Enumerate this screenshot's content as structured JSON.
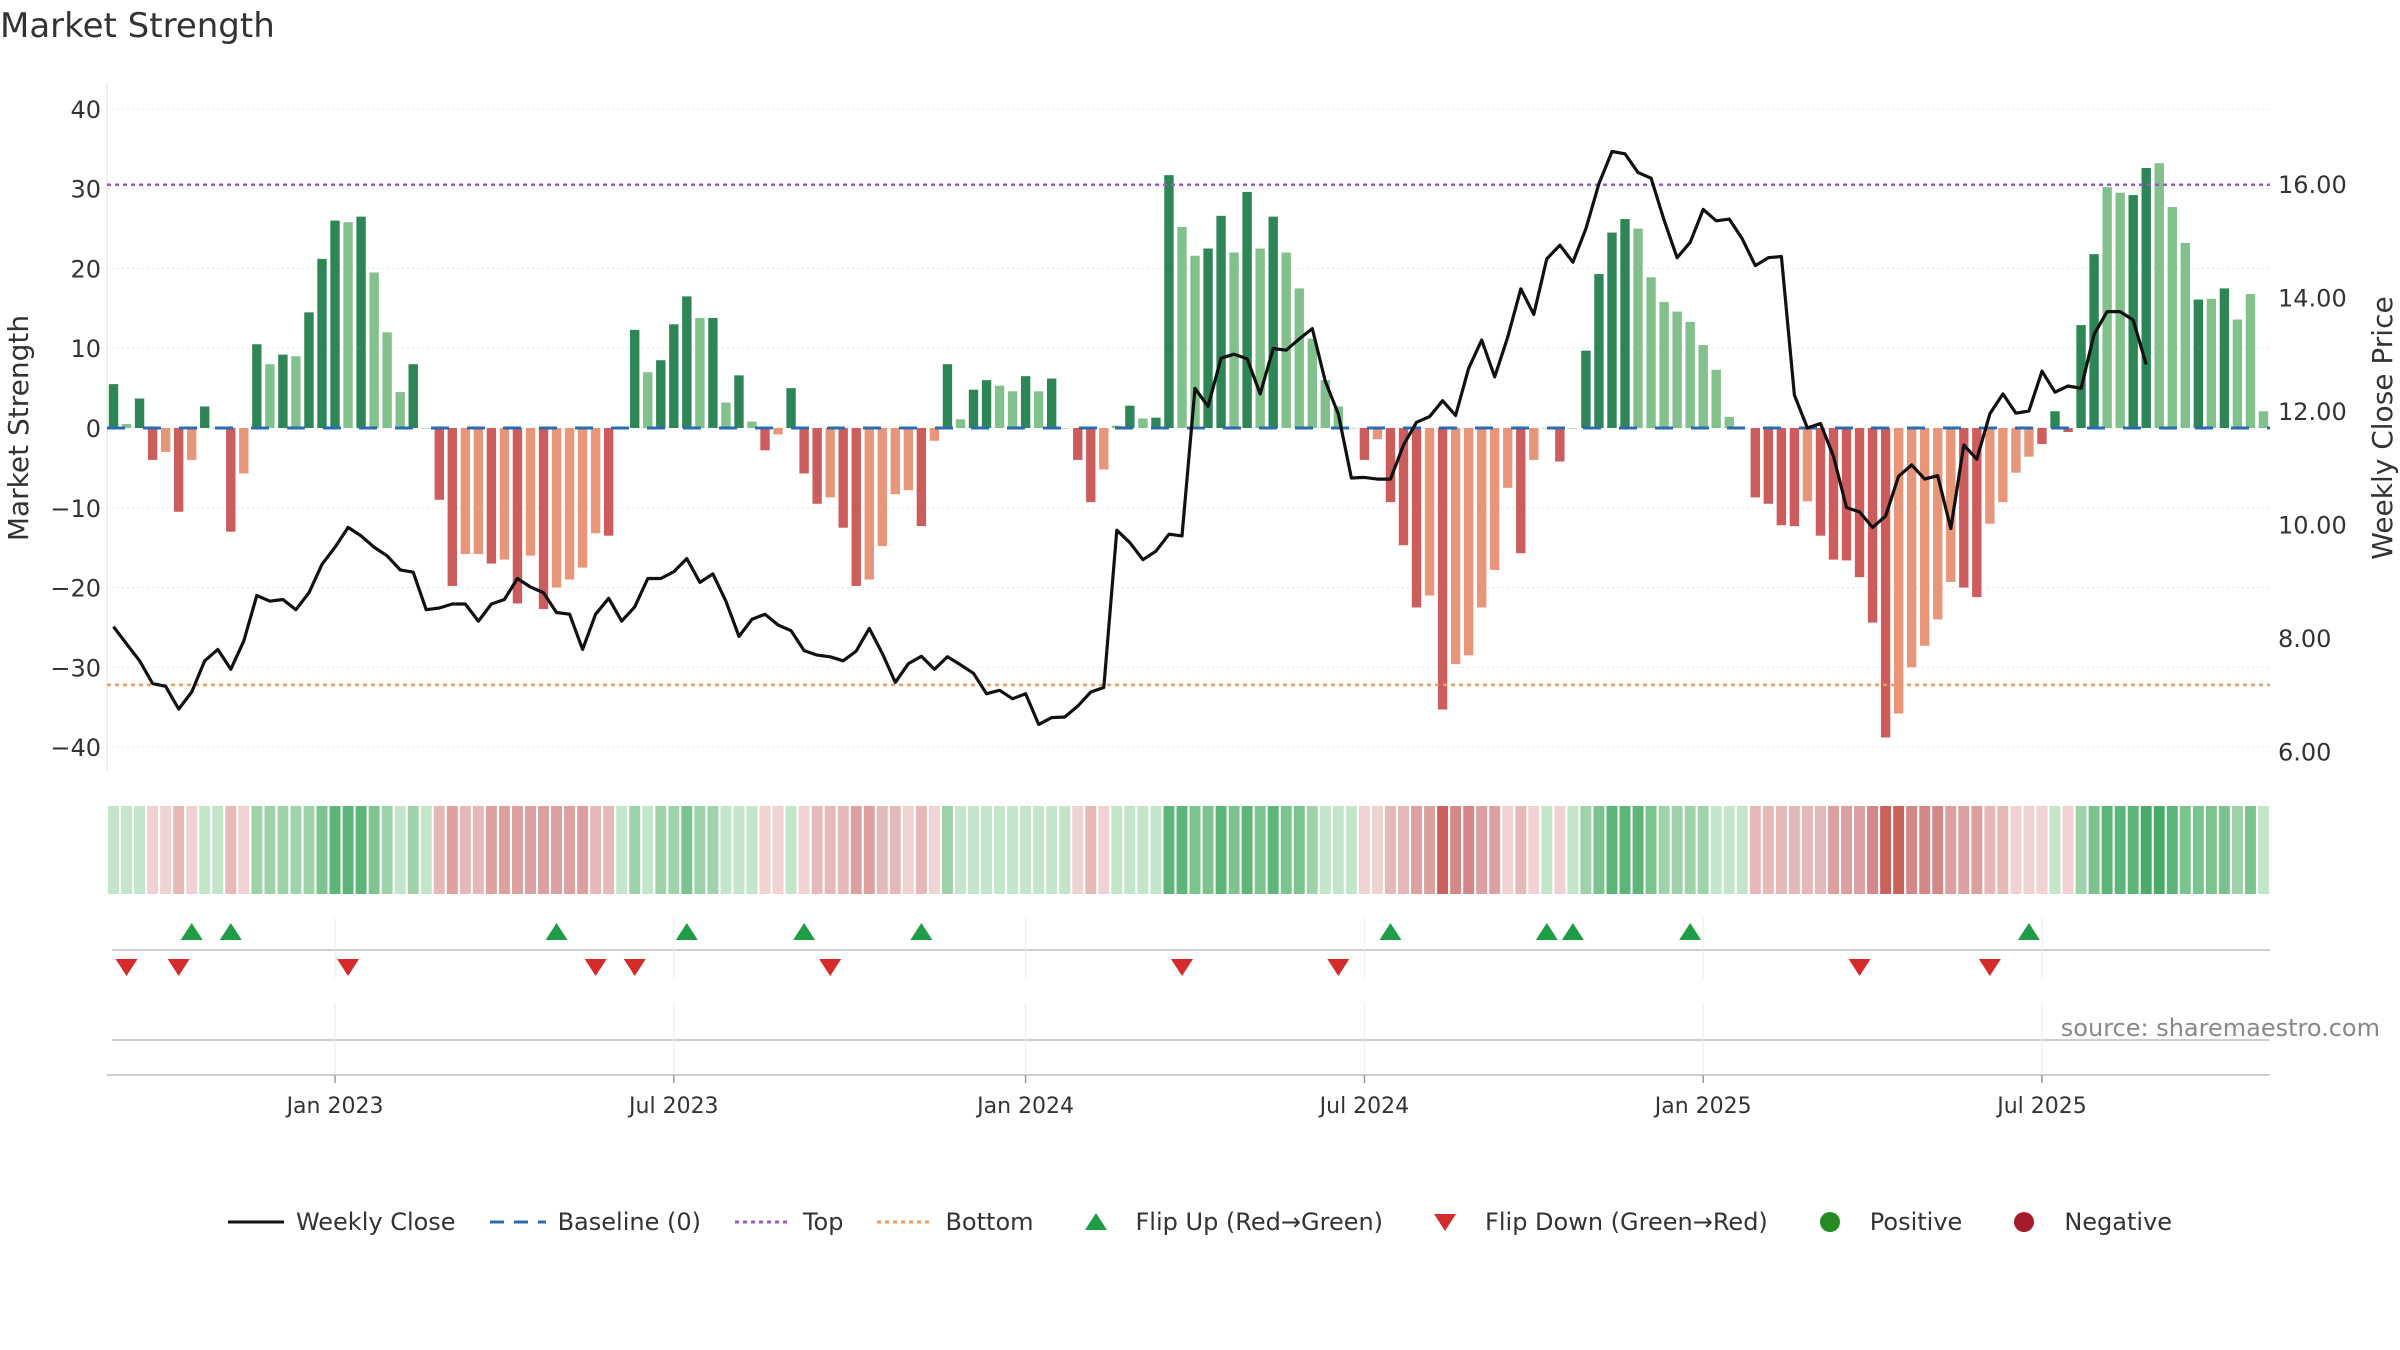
{
  "chart_data": {
    "type": "bar",
    "title": "Market Strength",
    "ylabel": "Market Strength",
    "y2label": "Weekly Close Price",
    "ylim": [
      -42,
      42
    ],
    "y2lim": [
      5.8,
      17.6
    ],
    "yticks": [
      "40",
      "30",
      "20",
      "10",
      "0",
      "−10",
      "−20",
      "−30",
      "−40"
    ],
    "y2ticks": [
      "16.00",
      "14.00",
      "12.00",
      "10.00",
      "8.00",
      "6.00"
    ],
    "top_line": 30.5,
    "bottom_line": -32.2,
    "x_start": "2022-09-05",
    "x_end": "2025-09-01",
    "date_ticks": [
      {
        "label": "Jan 2023",
        "week": 17
      },
      {
        "label": "Jul 2023",
        "week": 43
      },
      {
        "label": "Jan 2024",
        "week": 70
      },
      {
        "label": "Jul 2024",
        "week": 96
      },
      {
        "label": "Jan 2025",
        "week": 122
      },
      {
        "label": "Jul 2025",
        "week": 148
      }
    ],
    "series": [
      {
        "name": "Market Strength",
        "values": [
          5.5,
          0.5,
          3.7,
          -4,
          -3,
          -10.5,
          -4,
          2.7,
          0,
          -13,
          -5.7,
          10.5,
          8,
          9.2,
          9,
          14.5,
          21.2,
          26,
          25.8,
          26.5,
          19.5,
          12,
          4.5,
          8,
          0,
          -9,
          -19.8,
          -15.8,
          -15.8,
          -17,
          -16.5,
          -22,
          -16,
          -22.7,
          -20,
          -19,
          -17.5,
          -13.2,
          -13.5,
          0,
          12.3,
          7,
          8.5,
          13,
          16.5,
          13.8,
          13.8,
          3.2,
          6.6,
          0.8,
          -2.8,
          -0.8,
          5,
          -5.7,
          -9.5,
          -8.7,
          -12.5,
          -19.8,
          -19,
          -14.8,
          -8.3,
          -7.8,
          -12.3,
          -1.6,
          8,
          1.1,
          4.8,
          6,
          5.3,
          4.6,
          6.5,
          4.6,
          6.2,
          0,
          -4,
          -9.3,
          -5.2,
          0.3,
          2.8,
          1.2,
          1.3,
          31.7,
          25.2,
          21.6,
          22.5,
          26.6,
          22,
          29.6,
          22.5,
          26.5,
          22,
          17.5,
          11.2,
          6,
          2.7,
          0,
          -4,
          -1.4,
          -9.3,
          -14.7,
          -22.5,
          -21,
          -35.3,
          -29.6,
          -28.5,
          -22.5,
          -17.8,
          -7.5,
          -15.7,
          -4,
          0,
          -4.2,
          0,
          9.7,
          19.3,
          24.5,
          26.2,
          25,
          18.9,
          15.8,
          14.6,
          13.3,
          10.4,
          7.3,
          1.4,
          0,
          -8.7,
          -9.5,
          -12.2,
          -12.3,
          -9.2,
          -13.5,
          -16.5,
          -16.6,
          -18.7,
          -24.4,
          -38.8,
          -35.8,
          -30,
          -27.3,
          -24,
          -19.3,
          -20,
          -21.2,
          -12,
          -9.3,
          -5.6,
          -3.6,
          -2,
          2.1,
          -0.5,
          12.9,
          21.8,
          30.2,
          29.5,
          29.2,
          32.6,
          33.2,
          27.7,
          23.2,
          16.1,
          16.2,
          17.5,
          13.6,
          16.8,
          2.1
        ]
      },
      {
        "name": "Weekly Close",
        "values": [
          8.2,
          7.9,
          7.6,
          7.2,
          7.15,
          6.75,
          7.05,
          7.6,
          7.8,
          7.45,
          7.95,
          8.75,
          8.65,
          8.68,
          8.5,
          8.8,
          9.3,
          9.6,
          9.95,
          9.8,
          9.6,
          9.45,
          9.2,
          9.16,
          8.5,
          8.53,
          8.6,
          8.6,
          8.3,
          8.6,
          8.68,
          9.05,
          8.9,
          8.8,
          8.45,
          8.42,
          7.8,
          8.42,
          8.7,
          8.3,
          8.55,
          9.05,
          9.05,
          9.17,
          9.4,
          8.98,
          9.13,
          8.65,
          8.03,
          8.33,
          8.42,
          8.23,
          8.13,
          7.78,
          7.7,
          7.67,
          7.6,
          7.77,
          8.17,
          7.73,
          7.22,
          7.55,
          7.68,
          7.45,
          7.67,
          7.53,
          7.38,
          7.02,
          7.08,
          6.93,
          7.02,
          6.48,
          6.6,
          6.61,
          6.8,
          7.05,
          7.13,
          9.9,
          9.68,
          9.38,
          9.53,
          9.83,
          9.8,
          12.4,
          12.08,
          12.93,
          13,
          12.92,
          12.3,
          13.1,
          13.07,
          13.27,
          13.45,
          12.52,
          11.95,
          10.82,
          10.83,
          10.8,
          10.8,
          11.4,
          11.8,
          11.9,
          12.18,
          11.92,
          12.75,
          13.25,
          12.6,
          13.3,
          14.15,
          13.7,
          14.68,
          14.92,
          14.62,
          15.21,
          16,
          16.57,
          16.53,
          16.2,
          16.1,
          15.36,
          14.7,
          14.97,
          15.55,
          15.35,
          15.38,
          15.03,
          14.56,
          14.7,
          14.72,
          12.28,
          11.7,
          11.78,
          11.2,
          10.3,
          10.22,
          9.95,
          10.15,
          10.85,
          11.05,
          10.8,
          10.86,
          9.93,
          11.4,
          11.15,
          11.95,
          12.3,
          11.96,
          12,
          12.7,
          12.33,
          12.44,
          12.4,
          13.35,
          13.75,
          13.75,
          13.6,
          12.82
        ]
      }
    ],
    "bar_palette": {
      "pos_dark": "#2e8656",
      "pos_light": "#82c08c",
      "neg_dark": "#cd5c5c",
      "neg_light": "#e8967a"
    },
    "heat_palette": {
      "pos": [
        "#c3e5ca",
        "#9ed3aa",
        "#7bc48e",
        "#5db57a",
        "#4aaa69"
      ],
      "neg": [
        "#f0d2d2",
        "#e6b8b8",
        "#dca0a0",
        "#d38787",
        "#c8625a"
      ]
    },
    "bar_dark": [
      1,
      0,
      1,
      1,
      0,
      1,
      0,
      1,
      0,
      1,
      0,
      1,
      0,
      1,
      0,
      1,
      1,
      1,
      0,
      1,
      0,
      0,
      0,
      1,
      0,
      1,
      1,
      0,
      0,
      1,
      0,
      1,
      0,
      1,
      0,
      0,
      0,
      0,
      1,
      0,
      1,
      0,
      1,
      1,
      1,
      0,
      1,
      0,
      1,
      0,
      1,
      0,
      1,
      1,
      1,
      0,
      1,
      1,
      0,
      0,
      0,
      0,
      1,
      0,
      1,
      0,
      1,
      1,
      0,
      0,
      1,
      0,
      1,
      0,
      1,
      1,
      0,
      0,
      1,
      0,
      1,
      1,
      0,
      0,
      1,
      1,
      0,
      1,
      0,
      1,
      0,
      0,
      0,
      0,
      0,
      0,
      1,
      0,
      1,
      1,
      1,
      0,
      1,
      0,
      0,
      0,
      0,
      0,
      1,
      0,
      0,
      1,
      0,
      1,
      1,
      1,
      1,
      0,
      0,
      0,
      0,
      0,
      0,
      0,
      0,
      0,
      1,
      1,
      1,
      1,
      0,
      1,
      1,
      1,
      1,
      1,
      1,
      0,
      0,
      0,
      0,
      0,
      1,
      1,
      0,
      0,
      0,
      0,
      1,
      1,
      1,
      1,
      1,
      0,
      0,
      1,
      1,
      0,
      0,
      0,
      1,
      0,
      1,
      0,
      0
    ],
    "flip_up_weeks": [
      6,
      9,
      34,
      44,
      53,
      62,
      98,
      110,
      112,
      121,
      147
    ],
    "flip_down_weeks": [
      1,
      5,
      18,
      37,
      40,
      55,
      82,
      94,
      134,
      144
    ],
    "legend": [
      {
        "key": "weekly-close",
        "label": "Weekly Close",
        "color": "#111111"
      },
      {
        "key": "baseline",
        "label": "Baseline (0)",
        "color": "#2b6cb0"
      },
      {
        "key": "top",
        "label": "Top",
        "color": "#9b59d0"
      },
      {
        "key": "bottom",
        "label": "Bottom",
        "color": "#e8a060"
      },
      {
        "key": "flip-up",
        "label": "Flip Up (Red→Green)",
        "color": "#1e9c46"
      },
      {
        "key": "flip-down",
        "label": "Flip Down (Green→Red)",
        "color": "#d62b2b"
      },
      {
        "key": "positive",
        "label": "Positive",
        "color": "#228b22"
      },
      {
        "key": "negative",
        "label": "Negative",
        "color": "#a51d2d"
      }
    ],
    "source": "source: sharemaestro.com"
  }
}
